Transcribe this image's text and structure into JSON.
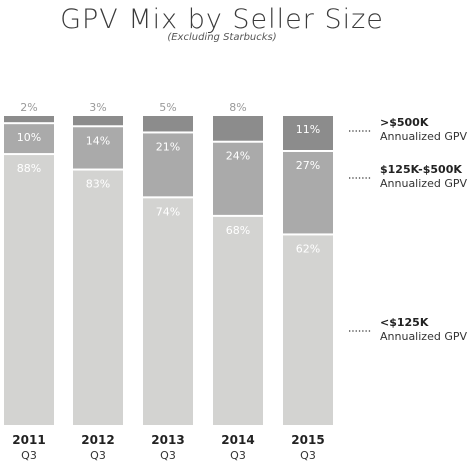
{
  "chart_data": {
    "type": "bar",
    "stacked": true,
    "title": "GPV Mix by Seller Size",
    "subtitle": "(Excluding Starbucks)",
    "categories": [
      "2011",
      "2012",
      "2013",
      "2014",
      "2015"
    ],
    "category_sublabels": [
      "Q3",
      "Q3",
      "Q3",
      "Q3",
      "Q3"
    ],
    "series": [
      {
        "name": "<$125K",
        "name_sub": "Annualized GPV",
        "values": [
          88,
          83,
          74,
          68,
          62
        ],
        "labels": [
          "88%",
          "83%",
          "74%",
          "68%",
          "62%"
        ],
        "color": "#d3d3d1"
      },
      {
        "name": "$125K-$500K",
        "name_sub": "Annualized GPV",
        "values": [
          10,
          14,
          21,
          24,
          27
        ],
        "labels": [
          "10%",
          "14%",
          "21%",
          "24%",
          "27%"
        ],
        "color": "#aaaaaa"
      },
      {
        "name": ">$500K",
        "name_sub": "Annualized GPV",
        "values": [
          2,
          3,
          5,
          8,
          11
        ],
        "labels": [
          "2%",
          "3%",
          "5%",
          "8%",
          "11%"
        ],
        "color": "#8c8c8c"
      }
    ],
    "ylim": [
      0,
      100
    ],
    "grid": false,
    "legend_position": "right"
  }
}
